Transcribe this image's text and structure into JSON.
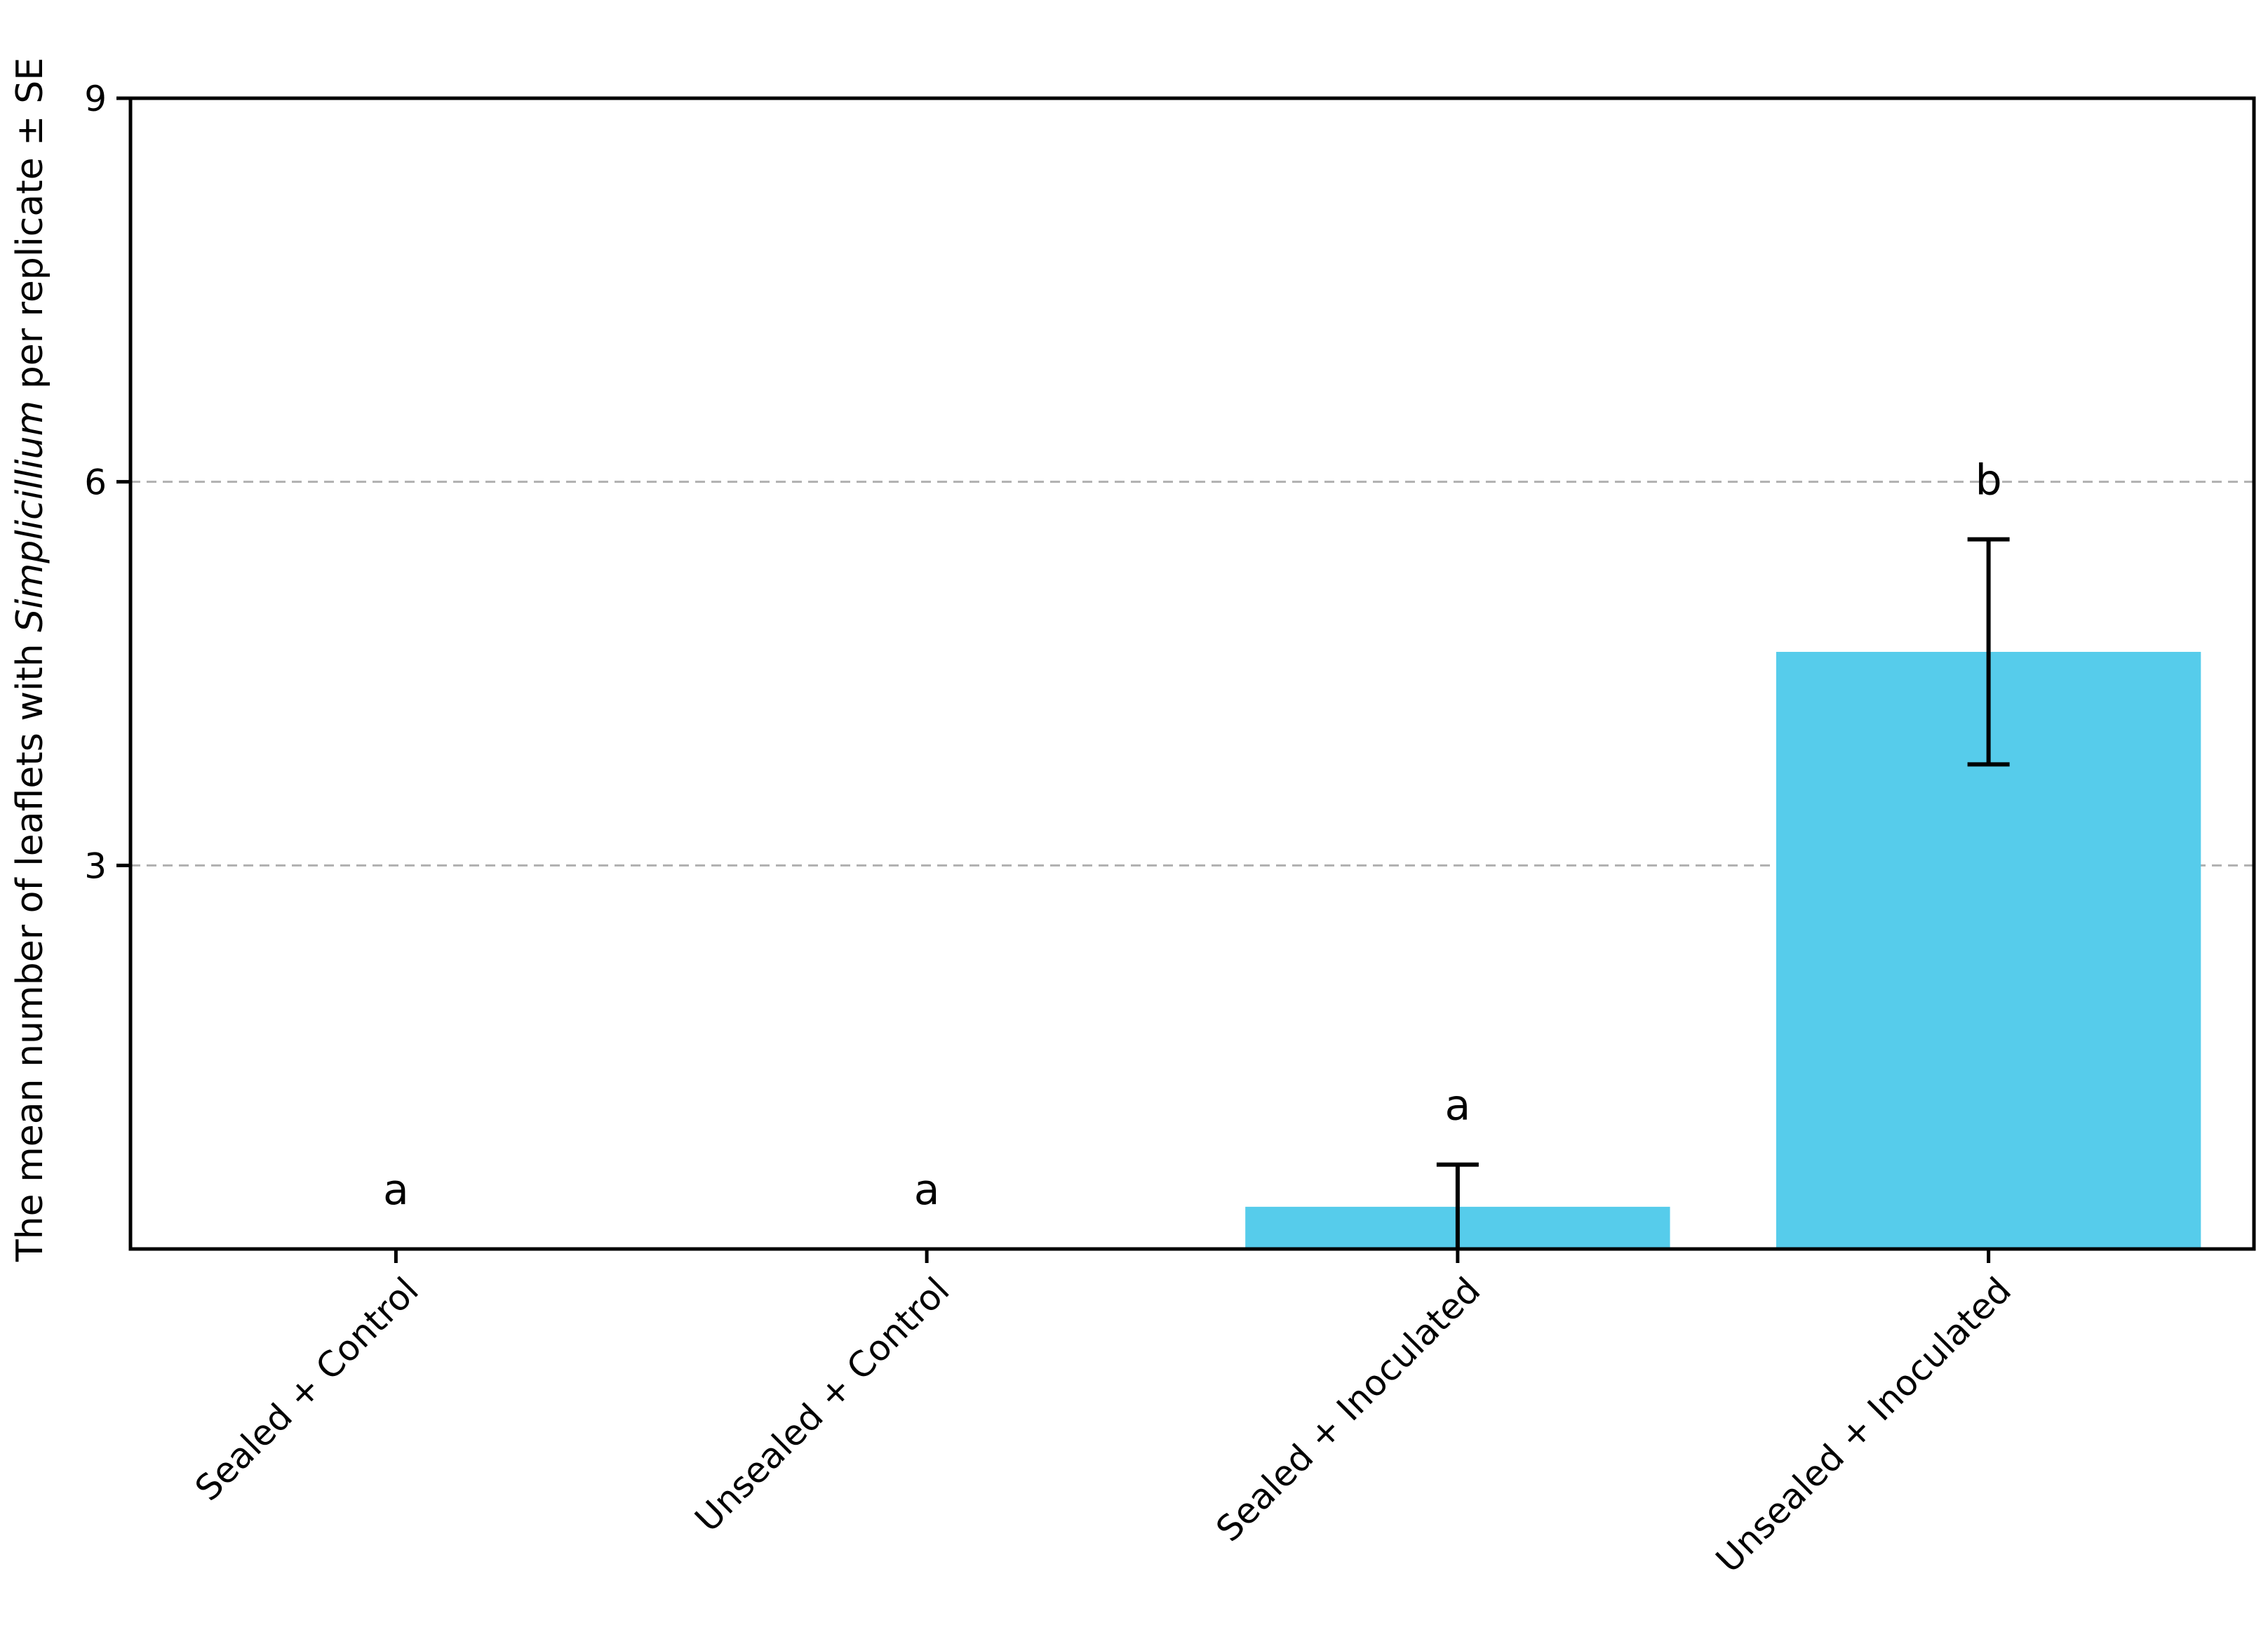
{
  "chart_data": {
    "type": "bar",
    "ylabel": {
      "prefix": "The mean number of leaflets with ",
      "italic": "Simplicillium",
      "suffix": " per replicate ± SE"
    },
    "categories": [
      "Sealed + Control",
      "Unsealed + Control",
      "Sealed + Inoculated",
      "Unsealed + Inoculated"
    ],
    "values": [
      0,
      0,
      0.33,
      4.67
    ],
    "errors": [
      0,
      0,
      0.33,
      0.88
    ],
    "significance_letters": [
      "a",
      "a",
      "a",
      "b"
    ],
    "ylim": [
      0,
      9
    ],
    "yticks": [
      3,
      6,
      9
    ],
    "grid": "horizontal dashed at 3 and 6",
    "bar_color": "#56CCEB"
  }
}
